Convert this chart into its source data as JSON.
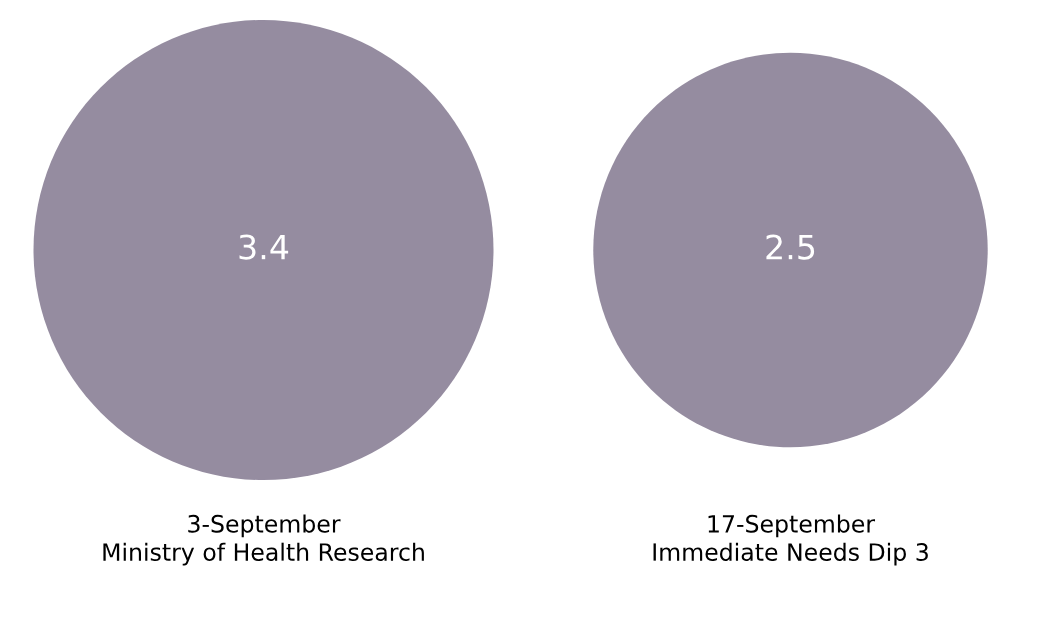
{
  "chart_data": {
    "type": "other",
    "categories": [
      "3-September\nMinistry of Health Research",
      "17-September\nImmediate Needs Dip 3"
    ],
    "values": [
      3.4,
      2.5
    ],
    "color": "#958ca0",
    "data_labels": true
  }
}
